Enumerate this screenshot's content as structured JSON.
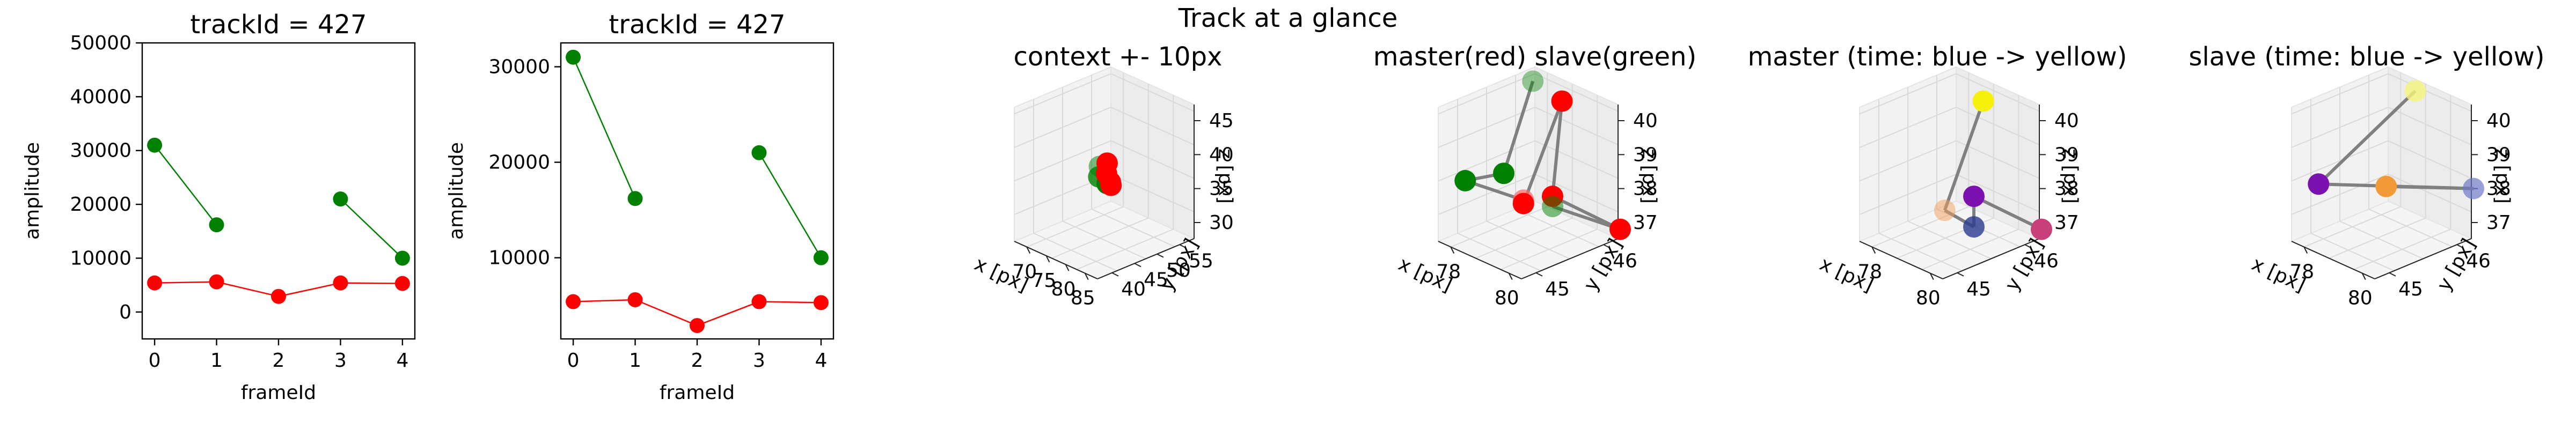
{
  "figure": {
    "suptitle": "Track at a glance"
  },
  "colors": {
    "green": "#008000",
    "red": "#ff0000",
    "pane": "#f2f2f2",
    "grid": "#d9d9d9",
    "link": "#808080"
  },
  "chart_data": [
    {
      "type": "line",
      "title": "trackId = 427",
      "xlabel": "frameId",
      "ylabel": "amplitude",
      "xlim": [
        -0.2,
        4.2
      ],
      "ylim": [
        -5000,
        50000
      ],
      "xticks": [
        "0",
        "1",
        "2",
        "3",
        "4"
      ],
      "yticks": [
        "0",
        "10000",
        "20000",
        "30000",
        "40000",
        "50000"
      ],
      "series": [
        {
          "color": "#008000",
          "segments": [
            [
              [
                0,
                31000
              ],
              [
                1,
                16200
              ]
            ],
            [
              [
                3,
                21000
              ],
              [
                4,
                10000
              ]
            ]
          ]
        },
        {
          "color": "#ff0000",
          "segments": [
            [
              [
                0,
                5400
              ],
              [
                1,
                5600
              ],
              [
                2,
                2900
              ],
              [
                3,
                5400
              ],
              [
                4,
                5300
              ]
            ]
          ]
        }
      ]
    },
    {
      "type": "line",
      "title": "trackId = 427",
      "xlabel": "frameId",
      "ylabel": "amplitude",
      "xlim": [
        -0.2,
        4.2
      ],
      "ylim": [
        1500,
        32500
      ],
      "xticks": [
        "0",
        "1",
        "2",
        "3",
        "4"
      ],
      "yticks": [
        "10000",
        "20000",
        "30000"
      ],
      "series": [
        {
          "color": "#008000",
          "segments": [
            [
              [
                0,
                31000
              ],
              [
                1,
                16200
              ]
            ],
            [
              [
                3,
                21000
              ],
              [
                4,
                10000
              ]
            ]
          ]
        },
        {
          "color": "#ff0000",
          "segments": [
            [
              [
                0,
                5400
              ],
              [
                1,
                5600
              ],
              [
                2,
                2900
              ],
              [
                3,
                5400
              ],
              [
                4,
                5300
              ]
            ]
          ]
        }
      ]
    },
    {
      "type": "scatter",
      "title": "context +- 10px",
      "xlabel": "x [px]",
      "ylabel": "y [px]",
      "zlabel": "z [px]",
      "xticks": [
        "70",
        "75",
        "80",
        "85"
      ],
      "yticks": [
        "40",
        "45",
        "50",
        "55"
      ],
      "zticks": [
        "30",
        "35",
        "40",
        "45"
      ],
      "points": [
        {
          "x": 78,
          "y": 46,
          "z": 39,
          "color": "#008000",
          "alpha": 0.5
        },
        {
          "x": 79,
          "y": 45,
          "z": 38,
          "color": "#008000",
          "alpha": 0.8
        },
        {
          "x": 80,
          "y": 46,
          "z": 37,
          "color": "#008000",
          "alpha": 1
        },
        {
          "x": 80,
          "y": 46,
          "z": 40,
          "color": "#ff0000",
          "alpha": 1
        },
        {
          "x": 81,
          "y": 45,
          "z": 39,
          "color": "#ff0000",
          "alpha": 1
        },
        {
          "x": 82,
          "y": 45,
          "z": 38,
          "color": "#ff0000",
          "alpha": 1
        },
        {
          "x": 81,
          "y": 46,
          "z": 37,
          "color": "#ff0000",
          "alpha": 1
        }
      ]
    },
    {
      "type": "scatter",
      "title": "master(red) slave(green)",
      "xlabel": "x [px]",
      "ylabel": "y [px]",
      "zlabel": "z [px]",
      "xticks": [
        "78",
        "80"
      ],
      "yticks": [
        "45",
        "46"
      ],
      "zticks": [
        "37",
        "38",
        "39",
        "40"
      ],
      "points": [
        {
          "x": 78,
          "y": 46,
          "z": 40.4,
          "color": "#008000",
          "alpha": 0.4
        },
        {
          "x": 77,
          "y": 46,
          "z": 37.3,
          "color": "#008000",
          "alpha": 1
        },
        {
          "x": 78,
          "y": 45,
          "z": 38.3,
          "color": "#008000",
          "alpha": 1
        },
        {
          "x": 80,
          "y": 45,
          "z": 38.5,
          "color": "#ff6666",
          "alpha": 0.7
        },
        {
          "x": 80,
          "y": 45,
          "z": 38.4,
          "color": "#ff0000",
          "alpha": 1
        },
        {
          "x": 79,
          "y": 46,
          "z": 40.2,
          "color": "#ff0000",
          "alpha": 1
        },
        {
          "x": 81,
          "y": 45,
          "z": 39.0,
          "color": "#ff0000",
          "alpha": 1
        },
        {
          "x": 81,
          "y": 46,
          "z": 37.2,
          "color": "#ff0000",
          "alpha": 1
        },
        {
          "x": 81,
          "y": 45,
          "z": 38.7,
          "color": "#008000",
          "alpha": 0.5
        }
      ]
    },
    {
      "type": "scatter",
      "title": "master (time: blue -> yellow)",
      "xlabel": "x [px]",
      "ylabel": "y [px]",
      "zlabel": "z [px]",
      "xticks": [
        "78",
        "80"
      ],
      "yticks": [
        "45",
        "46"
      ],
      "zticks": [
        "37",
        "38",
        "39",
        "40"
      ],
      "points": [
        {
          "x": 79,
          "y": 46,
          "z": 40.2,
          "color": "#f5f10a",
          "alpha": 1
        },
        {
          "x": 80,
          "y": 45,
          "z": 38.2,
          "color": "#f0a060",
          "alpha": 0.5
        },
        {
          "x": 81,
          "y": 45,
          "z": 38.1,
          "color": "#2a3a90",
          "alpha": 0.8
        },
        {
          "x": 81,
          "y": 45,
          "z": 39.0,
          "color": "#7b12b0",
          "alpha": 1
        },
        {
          "x": 81,
          "y": 46,
          "z": 37.2,
          "color": "#c8407a",
          "alpha": 1
        }
      ]
    },
    {
      "type": "scatter",
      "title": "slave (time: blue -> yellow)",
      "xlabel": "x [px]",
      "ylabel": "y [px]",
      "zlabel": "z [px]",
      "xticks": [
        "78",
        "80"
      ],
      "yticks": [
        "45",
        "46"
      ],
      "zticks": [
        "37",
        "38",
        "39",
        "40"
      ],
      "points": [
        {
          "x": 79,
          "y": 46,
          "z": 40.5,
          "color": "#f5f57a",
          "alpha": 0.8
        },
        {
          "x": 78,
          "y": 45,
          "z": 38.2,
          "color": "#7b12b0",
          "alpha": 1
        },
        {
          "x": 81,
          "y": 46,
          "z": 38.4,
          "color": "#6d78c8",
          "alpha": 0.7
        },
        {
          "x": 78,
          "y": 46,
          "z": 37.3,
          "color": "#f29a3a",
          "alpha": 1
        }
      ]
    }
  ]
}
